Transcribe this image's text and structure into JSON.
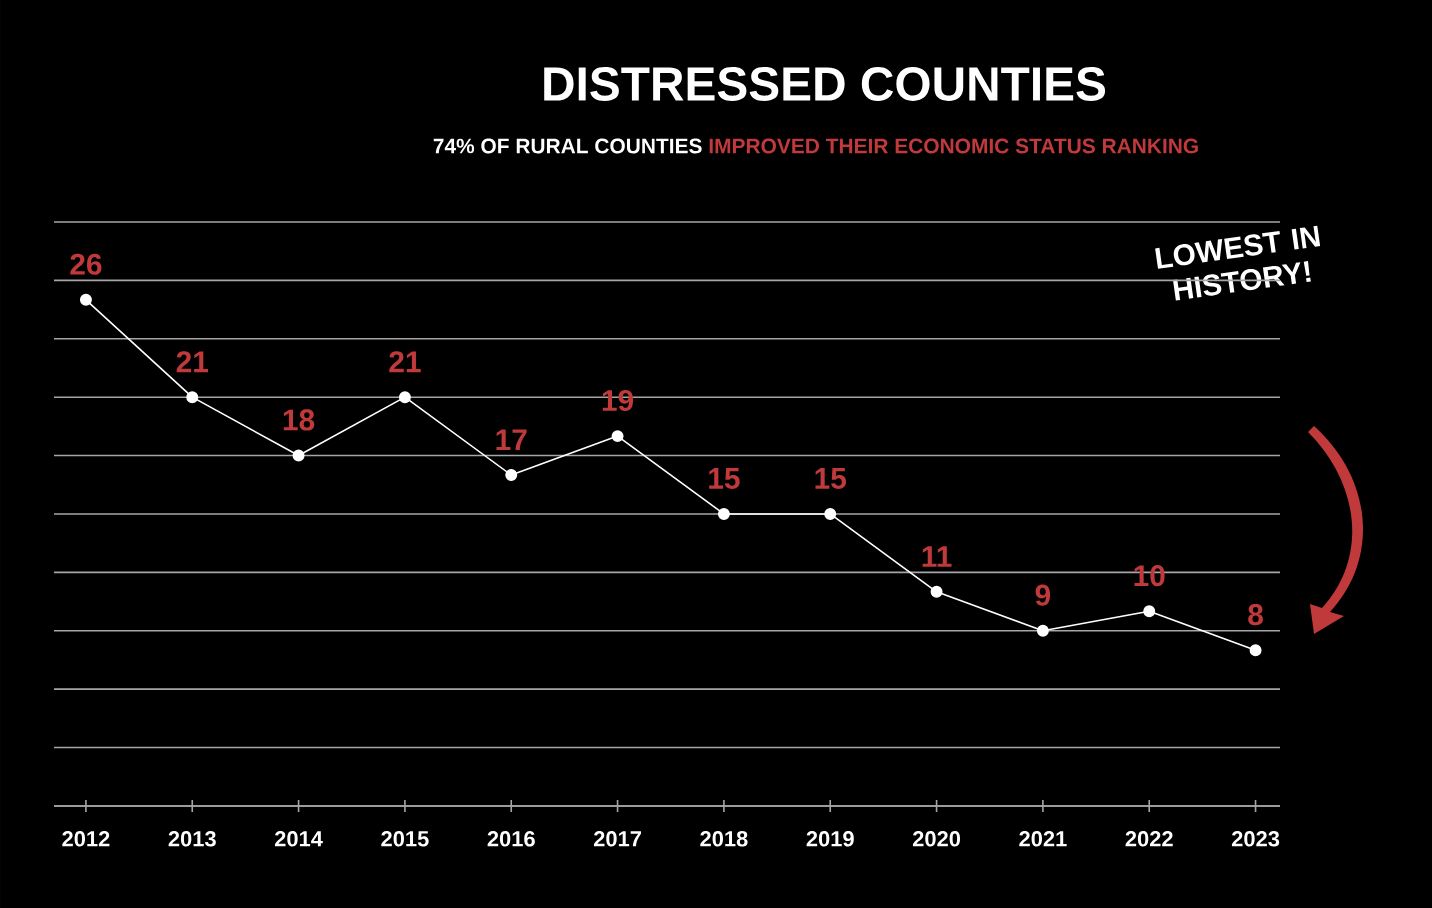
{
  "chart_data": {
    "type": "line",
    "title": "DISTRESSED COUNTIES",
    "subtitle": "74% OF RURAL COUNTIES",
    "annotations": [
      "IMPROVED THEIR ECONOMIC STATUS RANKING",
      "LOWEST IN HISTORY!"
    ],
    "categories": [
      "2012",
      "2013",
      "2014",
      "2015",
      "2016",
      "2017",
      "2018",
      "2019",
      "2020",
      "2021",
      "2022",
      "2023"
    ],
    "values": [
      26,
      21,
      18,
      21,
      17,
      19,
      15,
      15,
      11,
      9,
      10,
      8
    ],
    "color": "#ffffff",
    "marker": "circle",
    "line_style": "solid",
    "data_labels": true,
    "ylim": [
      0,
      30
    ],
    "yticks": [
      {
        "value": 0,
        "label": null
      },
      {
        "value": 3,
        "label": null
      },
      {
        "value": 6,
        "label": null
      },
      {
        "value": 9,
        "label": null
      },
      {
        "value": 12,
        "label": null
      },
      {
        "value": 15,
        "label": null
      },
      {
        "value": 18,
        "label": null
      },
      {
        "value": 21,
        "label": null
      },
      {
        "value": 24,
        "label": null
      },
      {
        "value": 27,
        "label": null
      },
      {
        "value": 30,
        "label": null
      }
    ],
    "grid": "y",
    "tick_labels": "x"
  }
}
